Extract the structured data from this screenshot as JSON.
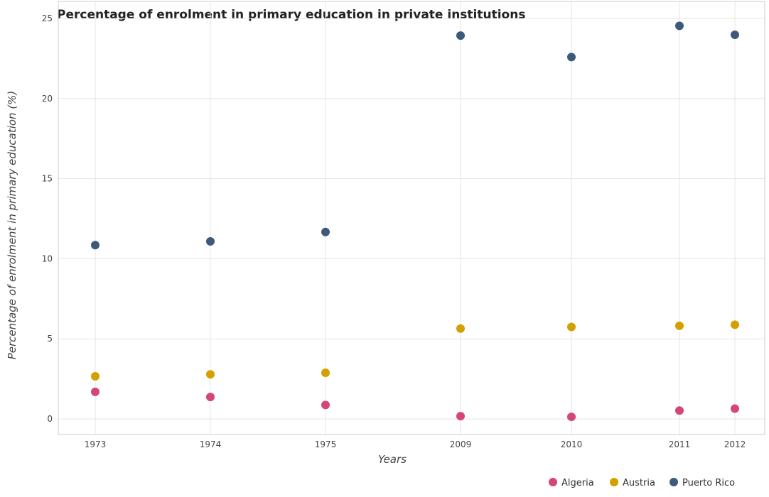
{
  "chart_data": {
    "type": "scatter",
    "title": "Percentage of enrolment in primary education in private institutions",
    "xlabel": "Years",
    "ylabel": "Percentage of enrolment in primary education (%)",
    "categories": [
      "1973",
      "1974",
      "1975",
      "2009",
      "2010",
      "2011",
      "2012"
    ],
    "ylim": [
      0,
      26
    ],
    "yticks": [
      0,
      5,
      10,
      15,
      20,
      25
    ],
    "grid": true,
    "legend_position": "bottom-right",
    "series": [
      {
        "name": "Algeria",
        "color": "#d6457a",
        "values": [
          1.69,
          1.37,
          0.87,
          0.17,
          0.13,
          0.52,
          0.64
        ]
      },
      {
        "name": "Austria",
        "color": "#d4a000",
        "values": [
          2.66,
          2.78,
          2.88,
          5.64,
          5.74,
          5.81,
          5.88
        ]
      },
      {
        "name": "Puerto Rico",
        "color": "#3d5a7a",
        "values": [
          10.85,
          11.08,
          11.67,
          23.93,
          22.59,
          24.54,
          23.98
        ]
      }
    ]
  }
}
